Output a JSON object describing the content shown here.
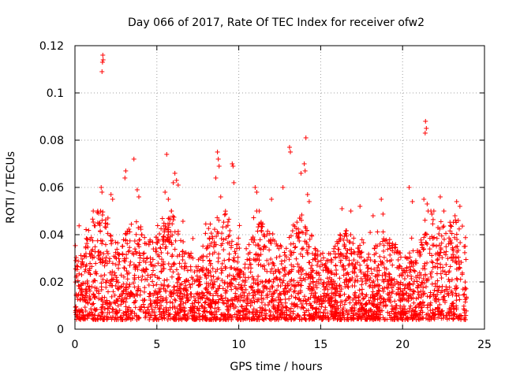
{
  "chart_data": {
    "type": "scatter",
    "title": "Day 066 of 2017, Rate Of TEC Index for receiver ofw2",
    "xlabel": "GPS time / hours",
    "ylabel": "ROTI / TECUs",
    "xlim": [
      0,
      25
    ],
    "ylim": [
      0,
      0.12
    ],
    "xticks": [
      0,
      5,
      10,
      15,
      20,
      25
    ],
    "yticks": [
      0,
      0.02,
      0.04,
      0.06,
      0.08,
      0.1,
      0.12
    ],
    "xtick_labels": [
      "0",
      "5",
      "10",
      "15",
      "20",
      "25"
    ],
    "ytick_labels": [
      "0",
      "0.02",
      "0.04",
      "0.06",
      "0.08",
      "0.1",
      "0.12"
    ],
    "grid": true,
    "marker": "plus",
    "color": "#ff0000",
    "x_range_of_data": [
      0,
      23.9
    ],
    "series": [
      {
        "points": [
          [
            1.7,
            0.116
          ],
          [
            1.72,
            0.114
          ],
          [
            1.68,
            0.113
          ],
          [
            1.65,
            0.109
          ],
          [
            21.4,
            0.088
          ],
          [
            21.45,
            0.085
          ],
          [
            21.38,
            0.083
          ],
          [
            14.1,
            0.081
          ],
          [
            13.1,
            0.077
          ],
          [
            13.15,
            0.075
          ],
          [
            8.7,
            0.075
          ],
          [
            8.75,
            0.072
          ],
          [
            8.8,
            0.069
          ],
          [
            5.6,
            0.074
          ],
          [
            3.6,
            0.072
          ],
          [
            9.6,
            0.07
          ],
          [
            9.65,
            0.069
          ],
          [
            14.0,
            0.07
          ],
          [
            14.05,
            0.067
          ],
          [
            13.8,
            0.066
          ],
          [
            3.1,
            0.067
          ],
          [
            3.05,
            0.064
          ],
          [
            6.1,
            0.066
          ],
          [
            6.2,
            0.063
          ],
          [
            6.0,
            0.062
          ],
          [
            6.3,
            0.061
          ],
          [
            8.6,
            0.064
          ],
          [
            9.7,
            0.062
          ],
          [
            11.0,
            0.06
          ],
          [
            11.1,
            0.058
          ],
          [
            12.7,
            0.06
          ],
          [
            20.4,
            0.06
          ],
          [
            1.6,
            0.06
          ],
          [
            1.65,
            0.058
          ],
          [
            2.2,
            0.057
          ],
          [
            2.3,
            0.055
          ],
          [
            3.8,
            0.059
          ],
          [
            3.9,
            0.056
          ],
          [
            5.5,
            0.058
          ],
          [
            5.7,
            0.055
          ],
          [
            8.9,
            0.056
          ],
          [
            12.0,
            0.055
          ],
          [
            14.2,
            0.057
          ],
          [
            14.3,
            0.054
          ],
          [
            16.3,
            0.051
          ],
          [
            17.4,
            0.052
          ],
          [
            18.2,
            0.048
          ],
          [
            18.7,
            0.055
          ],
          [
            20.6,
            0.054
          ],
          [
            21.3,
            0.055
          ],
          [
            21.5,
            0.053
          ],
          [
            22.3,
            0.056
          ],
          [
            23.3,
            0.054
          ],
          [
            23.5,
            0.052
          ],
          [
            23.2,
            0.048
          ],
          [
            23.4,
            0.046
          ]
        ]
      }
    ]
  }
}
